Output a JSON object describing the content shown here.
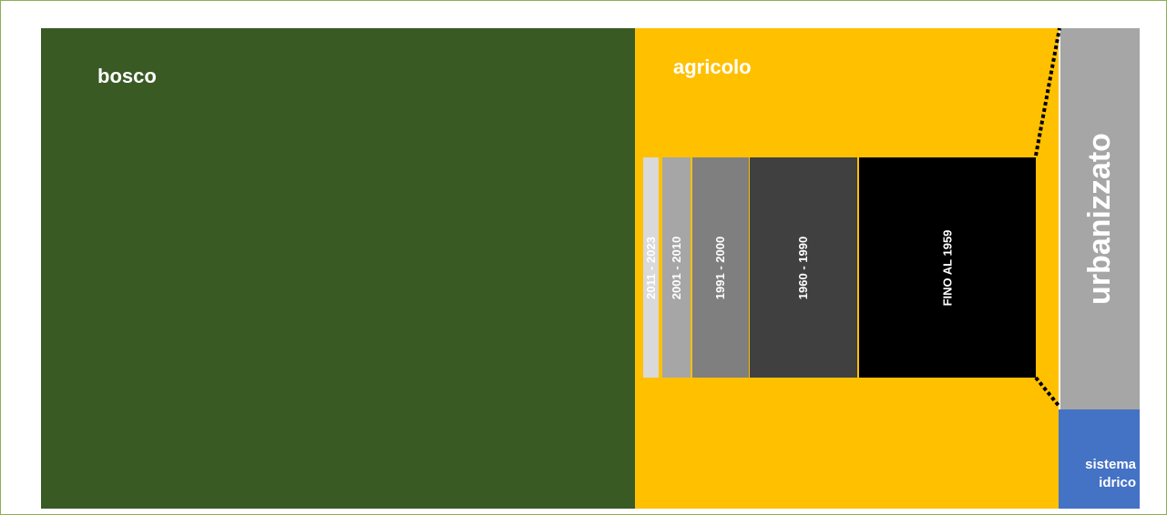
{
  "categories": {
    "bosco": "bosco",
    "agricolo": "agricolo",
    "urbanizzato": "urbanizzato",
    "sistema_idrico_line1": "sistema",
    "sistema_idrico_line2": "idrico"
  },
  "periods": {
    "p2011": "2011 - 2023",
    "p2001": "2001 - 2010",
    "p1991": "1991 - 2000",
    "p1960": "1960 - 1990",
    "p1959": "FINO AL 1959"
  },
  "colors": {
    "bosco": "#3a5a24",
    "agricolo": "#ffc000",
    "urbanizzato": "#a6a6a6",
    "sistema_idrico": "#4472c4",
    "frame_border": "#8fae53"
  }
}
